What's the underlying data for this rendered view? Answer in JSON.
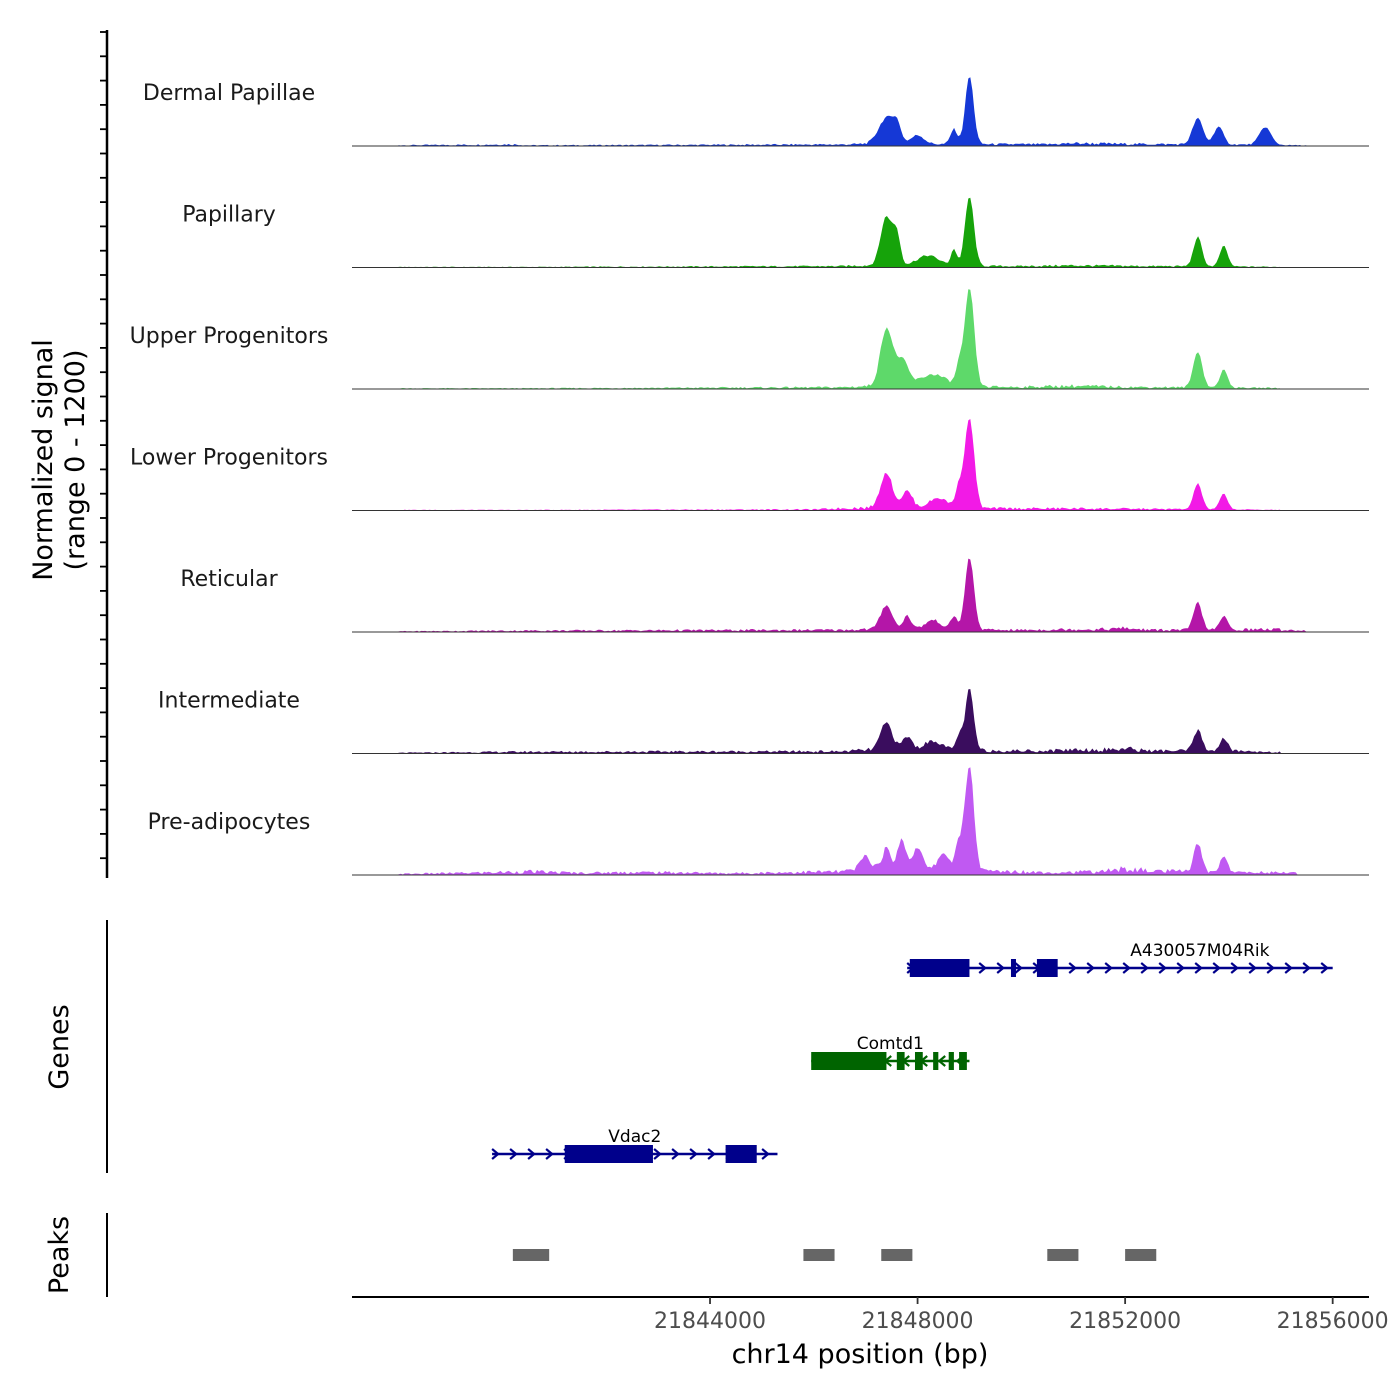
{
  "chart_data": {
    "type": "area",
    "title": "",
    "ylabel_line1": "Normalized signal",
    "ylabel_line2": "(range 0 - 1200)",
    "xlabel": "chr14 position (bp)",
    "xlim": [
      21837100,
      21856700
    ],
    "ylim": [
      0,
      1200
    ],
    "x_ticks": [
      21844000,
      21848000,
      21852000,
      21856000
    ],
    "x_tick_labels": [
      "21844000",
      "21848000",
      "21852000",
      "21856000"
    ],
    "series": [
      {
        "name": "Dermal Papillae",
        "color": "#1538d6",
        "background": [
          [
            21838000,
            12
          ],
          [
            21839500,
            18
          ],
          [
            21840200,
            25
          ],
          [
            21840500,
            10
          ],
          [
            21846500,
            22
          ],
          [
            21847000,
            30
          ],
          [
            21850500,
            25
          ],
          [
            21851000,
            40
          ],
          [
            21851500,
            35
          ],
          [
            21852000,
            30
          ],
          [
            21854500,
            20
          ],
          [
            21855000,
            15
          ],
          [
            21855500,
            8
          ]
        ],
        "peaks": [
          [
            21847400,
            380,
            300
          ],
          [
            21847600,
            230,
            160
          ],
          [
            21848000,
            130,
            250
          ],
          [
            21848700,
            220,
            130
          ],
          [
            21849000,
            1000,
            160
          ],
          [
            21853400,
            380,
            200
          ],
          [
            21853800,
            260,
            180
          ],
          [
            21854700,
            260,
            220
          ]
        ]
      },
      {
        "name": "Papillary",
        "color": "#16a30a",
        "background": [
          [
            21838000,
            8
          ],
          [
            21840500,
            8
          ],
          [
            21846500,
            20
          ],
          [
            21847000,
            30
          ],
          [
            21850000,
            20
          ],
          [
            21851000,
            30
          ],
          [
            21852500,
            20
          ],
          [
            21853000,
            20
          ],
          [
            21855000,
            10
          ]
        ],
        "peaks": [
          [
            21847400,
            720,
            220
          ],
          [
            21847600,
            420,
            140
          ],
          [
            21848200,
            150,
            420
          ],
          [
            21848700,
            240,
            110
          ],
          [
            21849000,
            1020,
            170
          ],
          [
            21853400,
            430,
            160
          ],
          [
            21853900,
            300,
            150
          ]
        ]
      },
      {
        "name": "Upper Progenitors",
        "color": "#5ed96a",
        "background": [
          [
            21838000,
            10
          ],
          [
            21840500,
            10
          ],
          [
            21846500,
            25
          ],
          [
            21847000,
            40
          ],
          [
            21850000,
            30
          ],
          [
            21851000,
            45
          ],
          [
            21852000,
            30
          ],
          [
            21855000,
            15
          ]
        ],
        "peaks": [
          [
            21847400,
            850,
            230
          ],
          [
            21847700,
            380,
            240
          ],
          [
            21848300,
            180,
            500
          ],
          [
            21848800,
            300,
            120
          ],
          [
            21849000,
            1450,
            180
          ],
          [
            21853400,
            530,
            170
          ],
          [
            21853900,
            260,
            150
          ]
        ]
      },
      {
        "name": "Lower Progenitors",
        "color": "#f21ae6",
        "background": [
          [
            21838000,
            8
          ],
          [
            21840500,
            8
          ],
          [
            21846000,
            15
          ],
          [
            21846800,
            40
          ],
          [
            21850000,
            30
          ],
          [
            21851000,
            30
          ],
          [
            21852000,
            25
          ],
          [
            21855000,
            10
          ]
        ],
        "peaks": [
          [
            21847400,
            520,
            230
          ],
          [
            21847800,
            250,
            200
          ],
          [
            21848400,
            150,
            350
          ],
          [
            21848800,
            300,
            140
          ],
          [
            21849000,
            1320,
            180
          ],
          [
            21853400,
            380,
            160
          ],
          [
            21853900,
            230,
            150
          ]
        ]
      },
      {
        "name": "Reticular",
        "color": "#b416a8",
        "background": [
          [
            21838000,
            10
          ],
          [
            21840500,
            20
          ],
          [
            21846500,
            30
          ],
          [
            21847000,
            40
          ],
          [
            21850000,
            30
          ],
          [
            21851000,
            40
          ],
          [
            21851500,
            40
          ],
          [
            21852000,
            55
          ],
          [
            21852500,
            30
          ],
          [
            21854000,
            35
          ],
          [
            21854800,
            40
          ],
          [
            21855500,
            20
          ]
        ],
        "peaks": [
          [
            21847400,
            360,
            220
          ],
          [
            21847800,
            200,
            160
          ],
          [
            21848300,
            140,
            300
          ],
          [
            21848700,
            200,
            120
          ],
          [
            21849000,
            1060,
            170
          ],
          [
            21853400,
            400,
            160
          ],
          [
            21853900,
            200,
            140
          ]
        ]
      },
      {
        "name": "Intermediate",
        "color": "#3a0d5e",
        "background": [
          [
            21838000,
            10
          ],
          [
            21840500,
            25
          ],
          [
            21846500,
            30
          ],
          [
            21847000,
            50
          ],
          [
            21850500,
            40
          ],
          [
            21851000,
            60
          ],
          [
            21851500,
            55
          ],
          [
            21852000,
            70
          ],
          [
            21852500,
            40
          ],
          [
            21854000,
            40
          ],
          [
            21855000,
            20
          ]
        ],
        "peaks": [
          [
            21847400,
            400,
            230
          ],
          [
            21847800,
            200,
            180
          ],
          [
            21848300,
            140,
            350
          ],
          [
            21848800,
            220,
            120
          ],
          [
            21849000,
            900,
            160
          ],
          [
            21853400,
            300,
            160
          ],
          [
            21853900,
            180,
            150
          ]
        ]
      },
      {
        "name": "Pre-adipocytes",
        "color": "#c059f2",
        "background": [
          [
            21838000,
            15
          ],
          [
            21839300,
            30
          ],
          [
            21840500,
            50
          ],
          [
            21841500,
            30
          ],
          [
            21842500,
            40
          ],
          [
            21843500,
            35
          ],
          [
            21844300,
            25
          ],
          [
            21846500,
            50
          ],
          [
            21847000,
            80
          ],
          [
            21850000,
            50
          ],
          [
            21850700,
            40
          ],
          [
            21851500,
            50
          ],
          [
            21852000,
            90
          ],
          [
            21852500,
            60
          ],
          [
            21854000,
            40
          ],
          [
            21854700,
            40
          ],
          [
            21855300,
            30
          ]
        ],
        "peaks": [
          [
            21847000,
            200,
            200
          ],
          [
            21847400,
            300,
            180
          ],
          [
            21847700,
            450,
            160
          ],
          [
            21848000,
            350,
            180
          ],
          [
            21848500,
            260,
            220
          ],
          [
            21848800,
            400,
            140
          ],
          [
            21849000,
            1550,
            170
          ],
          [
            21853400,
            420,
            150
          ],
          [
            21853900,
            240,
            140
          ]
        ]
      }
    ],
    "genes": [
      {
        "name": "A430057M04Rik",
        "strand": "+",
        "color": "#00008b",
        "start": 21847800,
        "end": 21856000,
        "exons": [
          [
            21847850,
            21849000
          ],
          [
            21849800,
            21849850
          ],
          [
            21850300,
            21850700
          ]
        ]
      },
      {
        "name": "Comtd1",
        "strand": "-",
        "color": "#006400",
        "start": 21845950,
        "end": 21849000,
        "exons": [
          [
            21845950,
            21847400
          ],
          [
            21847600,
            21847750
          ],
          [
            21847950,
            21848100
          ],
          [
            21848300,
            21848400
          ],
          [
            21848600,
            21848700
          ],
          [
            21848800,
            21848950
          ]
        ]
      },
      {
        "name": "Vdac2",
        "strand": "+",
        "color": "#00008b",
        "start": 21839800,
        "end": 21845300,
        "exons": [
          [
            21841200,
            21842900
          ],
          [
            21844300,
            21844900
          ]
        ]
      }
    ],
    "peaks_track": [
      [
        21840200,
        21840900
      ],
      [
        21845800,
        21846400
      ],
      [
        21847300,
        21847900
      ],
      [
        21850500,
        21851100
      ],
      [
        21852000,
        21852600
      ]
    ],
    "genes_label": "Genes",
    "peaks_label": "Peaks"
  }
}
